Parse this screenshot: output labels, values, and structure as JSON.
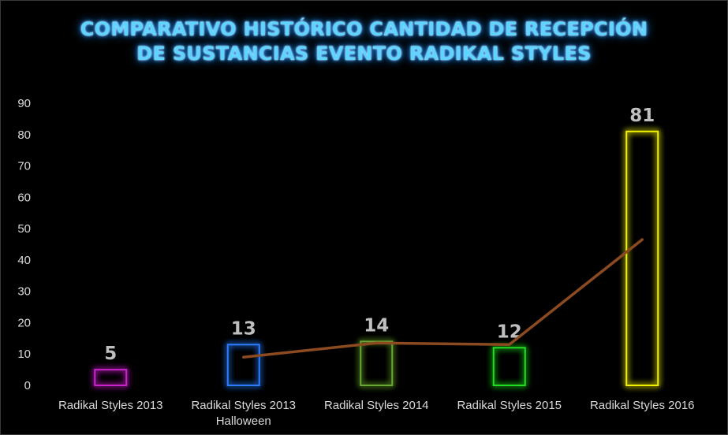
{
  "chart_data": {
    "type": "bar",
    "title_lines": [
      "COMPARATIVO HISTÓRICO CANTIDAD DE RECEPCIÓN",
      "DE SUSTANCIAS EVENTO RADIKAL STYLES"
    ],
    "categories": [
      [
        "Radikal Styles 2013"
      ],
      [
        "Radikal Styles 2013",
        "Halloween"
      ],
      [
        "Radikal Styles 2014"
      ],
      [
        "Radikal Styles 2015"
      ],
      [
        "Radikal Styles 2016"
      ]
    ],
    "values": [
      5,
      13,
      14,
      12,
      81
    ],
    "data_labels": [
      "5",
      "13",
      "14",
      "12",
      "81"
    ],
    "bar_colors": [
      "#cc22cc",
      "#2f7bff",
      "#6aa832",
      "#22dd22",
      "#f2f200"
    ],
    "trendline": {
      "type": "moving-average-2",
      "values": [
        null,
        9,
        13.5,
        13,
        46.5
      ],
      "color": "#8b4a20"
    },
    "yticks": [
      "0",
      "10",
      "20",
      "30",
      "40",
      "50",
      "60",
      "70",
      "80",
      "90"
    ],
    "ylim": [
      0,
      90
    ],
    "grid": false,
    "legend": "none"
  }
}
